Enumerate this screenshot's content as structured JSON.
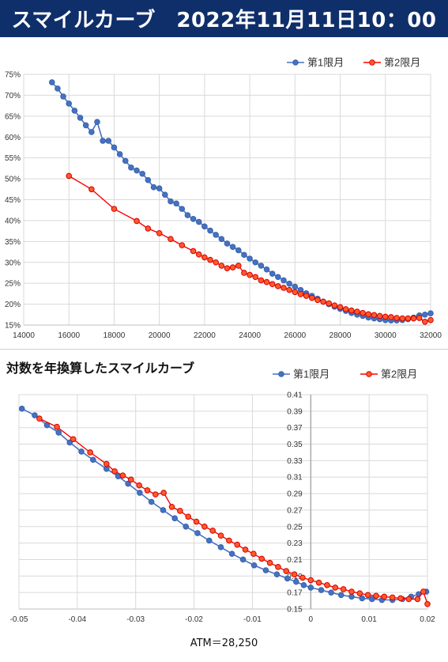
{
  "header": {
    "title": "スマイルカーブ　2022年11月11日10：00",
    "bg_color": "#0f2f6b",
    "text_color": "#ffffff"
  },
  "section2": {
    "title": "対数を年換算したスマイルカーブ",
    "footnote": "ATM＝28,250"
  },
  "colors": {
    "series1": "#4472c4",
    "series2": "#ff0000",
    "series2_fill": "#ff5a2a",
    "grid": "#d9d9d9"
  },
  "chart_data": [
    {
      "type": "line",
      "title": "",
      "xlabel": "",
      "ylabel": "",
      "xlim": [
        14000,
        32000
      ],
      "ylim": [
        0.15,
        0.75
      ],
      "x_ticks": [
        14000,
        16000,
        18000,
        20000,
        22000,
        24000,
        26000,
        28000,
        30000,
        32000
      ],
      "x_tick_labels": [
        "14000",
        "16000",
        "18000",
        "20000",
        "22000",
        "24000",
        "26000",
        "28000",
        "30000",
        "32000"
      ],
      "y_ticks": [
        0.15,
        0.2,
        0.25,
        0.3,
        0.35,
        0.4,
        0.45,
        0.5,
        0.55,
        0.6,
        0.65,
        0.7,
        0.75
      ],
      "y_tick_labels": [
        "15%",
        "20%",
        "25%",
        "30%",
        "35%",
        "40%",
        "45%",
        "50%",
        "55%",
        "60%",
        "65%",
        "70%",
        "75%"
      ],
      "grid": true,
      "legend_position": "top-right",
      "series": [
        {
          "name": "第1限月",
          "points": [
            [
              15250,
              0.731
            ],
            [
              15500,
              0.716
            ],
            [
              15750,
              0.697
            ],
            [
              16000,
              0.68
            ],
            [
              16250,
              0.663
            ],
            [
              16500,
              0.646
            ],
            [
              16750,
              0.628
            ],
            [
              17000,
              0.612
            ],
            [
              17250,
              0.636
            ],
            [
              17500,
              0.591
            ],
            [
              17750,
              0.591
            ],
            [
              18000,
              0.575
            ],
            [
              18250,
              0.559
            ],
            [
              18500,
              0.543
            ],
            [
              18750,
              0.527
            ],
            [
              19000,
              0.52
            ],
            [
              19250,
              0.512
            ],
            [
              19500,
              0.497
            ],
            [
              19750,
              0.48
            ],
            [
              20000,
              0.477
            ],
            [
              20250,
              0.462
            ],
            [
              20500,
              0.446
            ],
            [
              20750,
              0.441
            ],
            [
              21000,
              0.428
            ],
            [
              21250,
              0.413
            ],
            [
              21500,
              0.404
            ],
            [
              21750,
              0.397
            ],
            [
              22000,
              0.386
            ],
            [
              22250,
              0.376
            ],
            [
              22500,
              0.366
            ],
            [
              22750,
              0.356
            ],
            [
              23000,
              0.345
            ],
            [
              23250,
              0.337
            ],
            [
              23500,
              0.329
            ],
            [
              23750,
              0.318
            ],
            [
              24000,
              0.309
            ],
            [
              24250,
              0.3
            ],
            [
              24500,
              0.292
            ],
            [
              24750,
              0.283
            ],
            [
              25000,
              0.273
            ],
            [
              25250,
              0.265
            ],
            [
              25500,
              0.257
            ],
            [
              25750,
              0.249
            ],
            [
              26000,
              0.242
            ],
            [
              26250,
              0.234
            ],
            [
              26500,
              0.226
            ],
            [
              26750,
              0.22
            ],
            [
              27000,
              0.213
            ],
            [
              27250,
              0.206
            ],
            [
              27500,
              0.2
            ],
            [
              27750,
              0.194
            ],
            [
              28000,
              0.189
            ],
            [
              28250,
              0.184
            ],
            [
              28500,
              0.179
            ],
            [
              28750,
              0.175
            ],
            [
              29000,
              0.172
            ],
            [
              29250,
              0.168
            ],
            [
              29500,
              0.166
            ],
            [
              29750,
              0.164
            ],
            [
              30000,
              0.162
            ],
            [
              30250,
              0.161
            ],
            [
              30500,
              0.161
            ],
            [
              30750,
              0.162
            ],
            [
              31000,
              0.164
            ],
            [
              31250,
              0.168
            ],
            [
              31500,
              0.173
            ],
            [
              31750,
              0.175
            ],
            [
              32000,
              0.178
            ]
          ]
        },
        {
          "name": "第2限月",
          "points": [
            [
              16000,
              0.507
            ],
            [
              17000,
              0.475
            ],
            [
              18000,
              0.428
            ],
            [
              19000,
              0.399
            ],
            [
              19500,
              0.381
            ],
            [
              20000,
              0.37
            ],
            [
              20500,
              0.356
            ],
            [
              21000,
              0.341
            ],
            [
              21500,
              0.327
            ],
            [
              21750,
              0.319
            ],
            [
              22000,
              0.312
            ],
            [
              22250,
              0.306
            ],
            [
              22500,
              0.3
            ],
            [
              22750,
              0.292
            ],
            [
              23000,
              0.286
            ],
            [
              23250,
              0.288
            ],
            [
              23500,
              0.292
            ],
            [
              23750,
              0.275
            ],
            [
              24000,
              0.27
            ],
            [
              24250,
              0.265
            ],
            [
              24500,
              0.257
            ],
            [
              24750,
              0.253
            ],
            [
              25000,
              0.248
            ],
            [
              25250,
              0.243
            ],
            [
              25500,
              0.239
            ],
            [
              25750,
              0.234
            ],
            [
              26000,
              0.229
            ],
            [
              26250,
              0.224
            ],
            [
              26500,
              0.22
            ],
            [
              26750,
              0.215
            ],
            [
              27000,
              0.21
            ],
            [
              27250,
              0.206
            ],
            [
              27500,
              0.202
            ],
            [
              27750,
              0.197
            ],
            [
              28000,
              0.193
            ],
            [
              28250,
              0.188
            ],
            [
              28500,
              0.185
            ],
            [
              28750,
              0.182
            ],
            [
              29000,
              0.179
            ],
            [
              29250,
              0.176
            ],
            [
              29500,
              0.174
            ],
            [
              29750,
              0.172
            ],
            [
              30000,
              0.17
            ],
            [
              30250,
              0.169
            ],
            [
              30500,
              0.167
            ],
            [
              30750,
              0.166
            ],
            [
              31000,
              0.166
            ],
            [
              31250,
              0.166
            ],
            [
              31500,
              0.167
            ],
            [
              31750,
              0.158
            ],
            [
              32000,
              0.162
            ]
          ]
        }
      ]
    },
    {
      "type": "line",
      "title": "",
      "xlabel": "",
      "ylabel": "",
      "xlim": [
        -0.05,
        0.02
      ],
      "ylim": [
        0.15,
        0.41
      ],
      "x_ticks": [
        -0.05,
        -0.04,
        -0.03,
        -0.02,
        -0.01,
        0,
        0.01,
        0.02
      ],
      "x_tick_labels": [
        "-0.05",
        "-0.04",
        "-0.03",
        "-0.02",
        "-0.01",
        "0",
        "0.01",
        "0.02"
      ],
      "y_ticks": [
        0.15,
        0.17,
        0.19,
        0.21,
        0.23,
        0.25,
        0.27,
        0.29,
        0.31,
        0.33,
        0.35,
        0.37,
        0.39,
        0.41
      ],
      "y_tick_labels": [
        "0.15",
        "0.17",
        "0.19",
        "0.21",
        "0.23",
        "0.25",
        "0.27",
        "0.29",
        "0.31",
        "0.33",
        "0.35",
        "0.37",
        "0.39",
        "0.41"
      ],
      "grid": true,
      "legend_position": "top-right",
      "series": [
        {
          "name": "第1限月",
          "points": [
            [
              -0.0495,
              0.393
            ],
            [
              -0.0473,
              0.385
            ],
            [
              -0.0452,
              0.373
            ],
            [
              -0.0432,
              0.364
            ],
            [
              -0.0413,
              0.352
            ],
            [
              -0.0393,
              0.341
            ],
            [
              -0.0373,
              0.331
            ],
            [
              -0.035,
              0.32
            ],
            [
              -0.033,
              0.311
            ],
            [
              -0.0313,
              0.302
            ],
            [
              -0.0293,
              0.291
            ],
            [
              -0.0273,
              0.28
            ],
            [
              -0.0253,
              0.27
            ],
            [
              -0.0233,
              0.26
            ],
            [
              -0.0214,
              0.25
            ],
            [
              -0.0194,
              0.242
            ],
            [
              -0.0174,
              0.233
            ],
            [
              -0.0154,
              0.225
            ],
            [
              -0.0135,
              0.217
            ],
            [
              -0.0116,
              0.21
            ],
            [
              -0.0097,
              0.203
            ],
            [
              -0.0077,
              0.197
            ],
            [
              -0.0058,
              0.192
            ],
            [
              -0.004,
              0.187
            ],
            [
              -0.0025,
              0.183
            ],
            [
              -0.0012,
              0.179
            ],
            [
              0.0,
              0.176
            ],
            [
              0.0018,
              0.173
            ],
            [
              0.0035,
              0.17
            ],
            [
              0.0052,
              0.167
            ],
            [
              0.007,
              0.165
            ],
            [
              0.0088,
              0.163
            ],
            [
              0.0105,
              0.162
            ],
            [
              0.0122,
              0.161
            ],
            [
              0.014,
              0.161
            ],
            [
              0.0157,
              0.162
            ],
            [
              0.0172,
              0.165
            ],
            [
              0.0185,
              0.168
            ],
            [
              0.0198,
              0.171
            ]
          ]
        },
        {
          "name": "第2限月",
          "points": [
            [
              -0.0465,
              0.381
            ],
            [
              -0.0435,
              0.371
            ],
            [
              -0.0407,
              0.356
            ],
            [
              -0.0378,
              0.34
            ],
            [
              -0.035,
              0.326
            ],
            [
              -0.0336,
              0.317
            ],
            [
              -0.0322,
              0.312
            ],
            [
              -0.0308,
              0.307
            ],
            [
              -0.0294,
              0.3
            ],
            [
              -0.028,
              0.294
            ],
            [
              -0.0266,
              0.289
            ],
            [
              -0.0252,
              0.291
            ],
            [
              -0.0238,
              0.274
            ],
            [
              -0.0224,
              0.269
            ],
            [
              -0.021,
              0.262
            ],
            [
              -0.0196,
              0.256
            ],
            [
              -0.0182,
              0.25
            ],
            [
              -0.0168,
              0.245
            ],
            [
              -0.0154,
              0.239
            ],
            [
              -0.014,
              0.233
            ],
            [
              -0.0126,
              0.228
            ],
            [
              -0.0112,
              0.222
            ],
            [
              -0.0098,
              0.217
            ],
            [
              -0.0084,
              0.211
            ],
            [
              -0.007,
              0.206
            ],
            [
              -0.0056,
              0.201
            ],
            [
              -0.0042,
              0.196
            ],
            [
              -0.0028,
              0.192
            ],
            [
              -0.0014,
              0.188
            ],
            [
              0.0,
              0.185
            ],
            [
              0.0014,
              0.182
            ],
            [
              0.0028,
              0.179
            ],
            [
              0.0042,
              0.176
            ],
            [
              0.0056,
              0.174
            ],
            [
              0.007,
              0.171
            ],
            [
              0.0084,
              0.169
            ],
            [
              0.0098,
              0.167
            ],
            [
              0.0112,
              0.166
            ],
            [
              0.0126,
              0.165
            ],
            [
              0.014,
              0.164
            ],
            [
              0.0154,
              0.163
            ],
            [
              0.0168,
              0.162
            ],
            [
              0.0183,
              0.162
            ],
            [
              0.0193,
              0.171
            ],
            [
              0.02,
              0.156
            ]
          ]
        }
      ]
    }
  ]
}
